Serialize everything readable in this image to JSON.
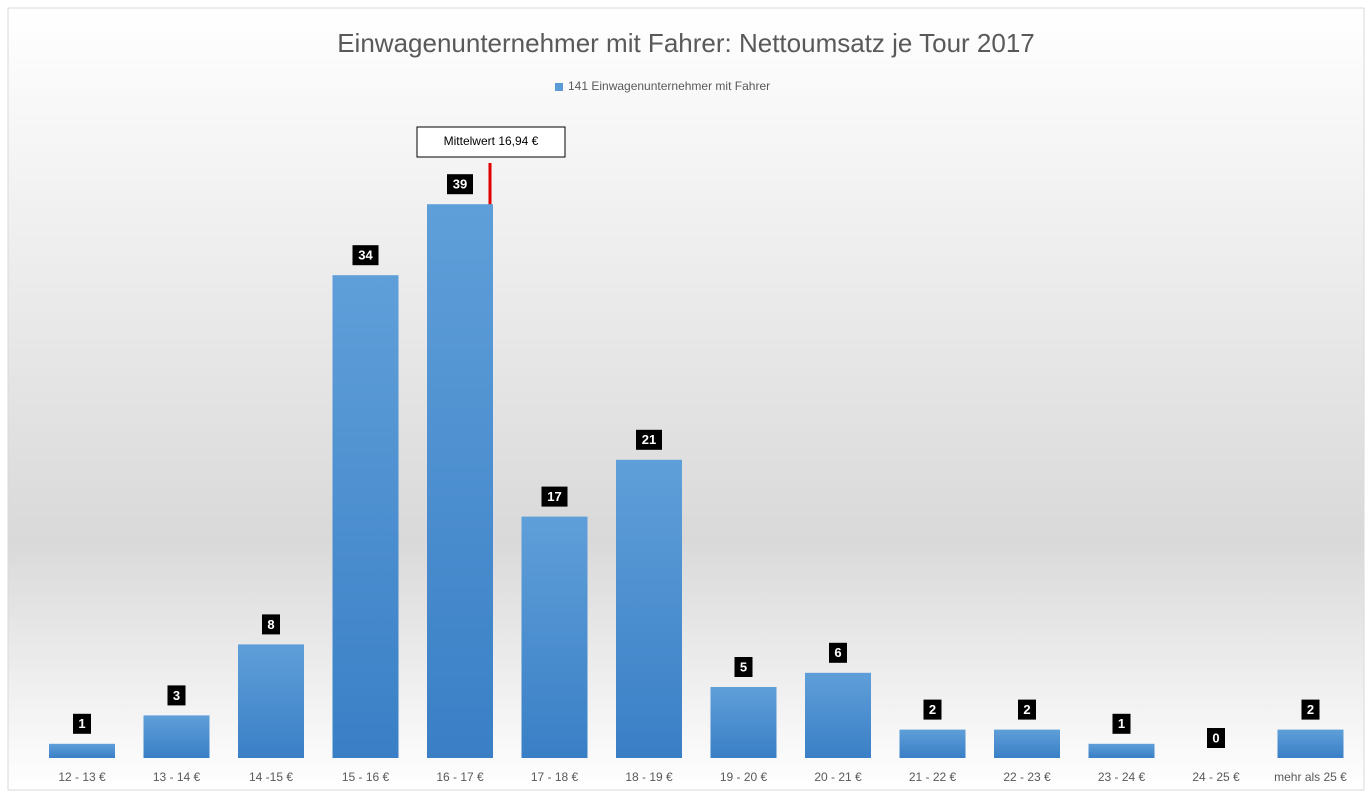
{
  "chart_data": {
    "type": "bar",
    "title": "Einwagenunternehmer mit Fahrer: Nettoumsatz je Tour 2017",
    "categories": [
      "12 - 13 €",
      "13 - 14 €",
      "14 -15 €",
      "15 - 16 €",
      "16 - 17 €",
      "17 - 18 €",
      "18 - 19 €",
      "19 - 20 €",
      "20 - 21 €",
      "21 - 22 €",
      "22 - 23 €",
      "23 - 24 €",
      "24 - 25 €",
      "mehr als 25 €"
    ],
    "series": [
      {
        "name": "141 Einwagenunternehmer mit Fahrer",
        "color": "#5b9bd5",
        "values": [
          1,
          3,
          8,
          34,
          39,
          17,
          21,
          5,
          6,
          2,
          2,
          1,
          0,
          2
        ]
      }
    ],
    "annotations": [
      "Mittelwert 16,94 €"
    ],
    "legend": "top"
  }
}
